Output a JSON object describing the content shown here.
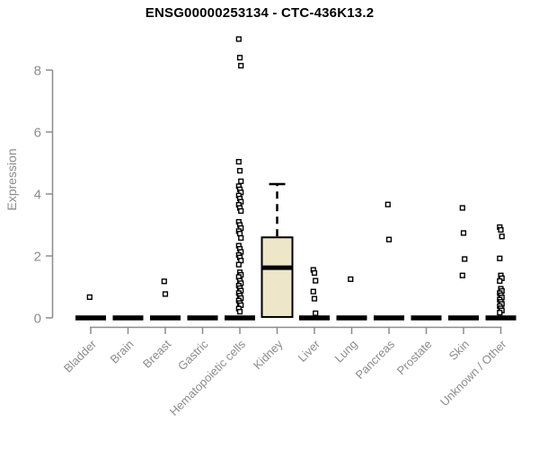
{
  "chart_data": {
    "type": "boxplot",
    "title": "ENSG00000253134 - CTC-436K13.2",
    "ylabel": "Expression",
    "xlabel": "",
    "ylim": [
      0,
      9.2
    ],
    "yticks": [
      0,
      2,
      4,
      6,
      8
    ],
    "grid": false,
    "legend": "none",
    "categories": [
      "Bladder",
      "Brain",
      "Breast",
      "Gastric",
      "Hematopoietic cells",
      "Kidney",
      "Liver",
      "Lung",
      "Pancreas",
      "Prostate",
      "Skin",
      "Unknown / Other"
    ],
    "boxes": [
      {
        "category": "Bladder",
        "q1": 0,
        "median": 0,
        "q3": 0,
        "whisker_low": 0,
        "whisker_high": 0,
        "outliers": [
          0.67
        ]
      },
      {
        "category": "Brain",
        "q1": 0,
        "median": 0,
        "q3": 0,
        "whisker_low": 0,
        "whisker_high": 0,
        "outliers": []
      },
      {
        "category": "Breast",
        "q1": 0,
        "median": 0,
        "q3": 0,
        "whisker_low": 0,
        "whisker_high": 0,
        "outliers": [
          1.18,
          0.77
        ]
      },
      {
        "category": "Gastric",
        "q1": 0,
        "median": 0,
        "q3": 0,
        "whisker_low": 0,
        "whisker_high": 0,
        "outliers": []
      },
      {
        "category": "Hematopoietic cells",
        "q1": 0,
        "median": 0,
        "q3": 0,
        "whisker_low": 0,
        "whisker_high": 0,
        "outliers": [
          9.0,
          8.4,
          8.14,
          5.04,
          4.75,
          4.41,
          4.25,
          4.15,
          4.05,
          3.95,
          3.85,
          3.75,
          3.65,
          3.55,
          3.45,
          3.1,
          3.0,
          2.9,
          2.8,
          2.72,
          2.58,
          2.33,
          2.23,
          2.13,
          2.03,
          1.95,
          1.85,
          1.72,
          1.47,
          1.39,
          1.32,
          1.2,
          1.12,
          1.04,
          0.96,
          0.88,
          0.8,
          0.72,
          0.64,
          0.56,
          0.48,
          0.41,
          0.3,
          0.2
        ]
      },
      {
        "category": "Kidney",
        "q1": 0.03,
        "median": 1.62,
        "q3": 2.6,
        "whisker_low": 0.03,
        "whisker_high": 4.32,
        "outliers": []
      },
      {
        "category": "Liver",
        "q1": 0,
        "median": 0,
        "q3": 0,
        "whisker_low": 0,
        "whisker_high": 0,
        "outliers": [
          1.55,
          1.45,
          1.2,
          0.85,
          0.62,
          0.15
        ]
      },
      {
        "category": "Lung",
        "q1": 0,
        "median": 0,
        "q3": 0,
        "whisker_low": 0,
        "whisker_high": 0,
        "outliers": [
          1.25
        ]
      },
      {
        "category": "Pancreas",
        "q1": 0,
        "median": 0,
        "q3": 0,
        "whisker_low": 0,
        "whisker_high": 0,
        "outliers": [
          3.66,
          2.53
        ]
      },
      {
        "category": "Prostate",
        "q1": 0,
        "median": 0,
        "q3": 0,
        "whisker_low": 0,
        "whisker_high": 0,
        "outliers": []
      },
      {
        "category": "Skin",
        "q1": 0,
        "median": 0,
        "q3": 0,
        "whisker_low": 0,
        "whisker_high": 0,
        "outliers": [
          3.55,
          2.74,
          1.9,
          1.37
        ]
      },
      {
        "category": "Unknown / Other",
        "q1": 0,
        "median": 0,
        "q3": 0,
        "whisker_low": 0,
        "whisker_high": 0,
        "outliers": [
          2.93,
          2.84,
          2.63,
          1.92,
          1.37,
          1.28,
          1.19,
          0.94,
          0.87,
          0.8,
          0.73,
          0.66,
          0.59,
          0.52,
          0.45,
          0.38,
          0.31,
          0.24,
          0.17
        ]
      }
    ],
    "colors": {
      "box_fill": "#ede6c9",
      "box_border": "#000000",
      "median": "#000000",
      "collapsed_bar": "#000000",
      "outlier_fill": "#ffffff",
      "outlier_border": "#000000",
      "axis": "#8c8c8c",
      "tick_label": "#8c8c8c",
      "title": "#000000",
      "background": "#ffffff"
    }
  }
}
